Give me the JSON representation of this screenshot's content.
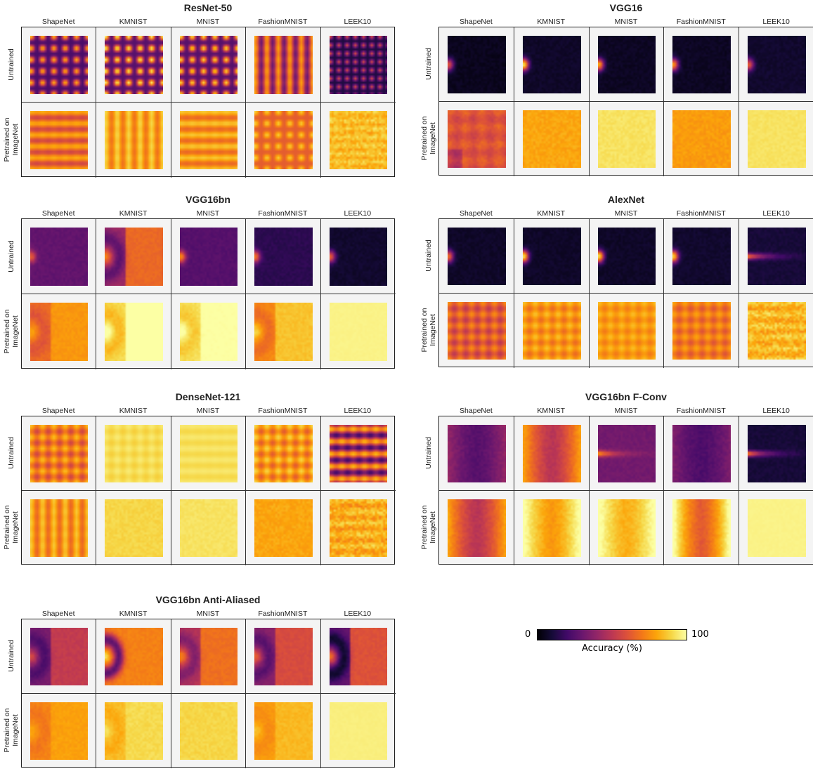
{
  "chart_data": {
    "type": "heatmap",
    "colormap": "inferno",
    "columns": [
      "ShapeNet",
      "KMNIST",
      "MNIST",
      "FashionMNIST",
      "LEEK10"
    ],
    "rows": [
      "Untrained",
      "Pretrained on ImageNet"
    ],
    "panels": [
      {
        "title": "ResNet-50",
        "cells": [
          [
            {
              "pattern": "dots",
              "base": 0.22,
              "amp": 0.6,
              "period": 5.5
            },
            {
              "pattern": "dots",
              "base": 0.25,
              "amp": 0.7,
              "period": 5.5
            },
            {
              "pattern": "dots",
              "base": 0.25,
              "amp": 0.65,
              "period": 5.5
            },
            {
              "pattern": "vstripes",
              "base": 0.3,
              "amp": 0.55,
              "period": 5.5
            },
            {
              "pattern": "dots",
              "base": 0.12,
              "amp": 0.45,
              "period": 4
            }
          ],
          [
            {
              "pattern": "hstripes",
              "base": 0.55,
              "amp": 0.3,
              "period": 5.5
            },
            {
              "pattern": "vstripes",
              "base": 0.68,
              "amp": 0.25,
              "period": 5.5
            },
            {
              "pattern": "hstripes",
              "base": 0.65,
              "amp": 0.25,
              "period": 5.5
            },
            {
              "pattern": "dots",
              "base": 0.63,
              "amp": 0.25,
              "period": 5.5
            },
            {
              "pattern": "noisy",
              "base": 0.86,
              "amp": 0.12,
              "period": 4
            }
          ]
        ]
      },
      {
        "title": "VGG16",
        "cells": [
          [
            {
              "pattern": "blob",
              "base": 0.05,
              "amp": 0.55,
              "period": 8
            },
            {
              "pattern": "blob",
              "base": 0.07,
              "amp": 0.85,
              "period": 8
            },
            {
              "pattern": "blob",
              "base": 0.06,
              "amp": 0.75,
              "period": 8
            },
            {
              "pattern": "blob",
              "base": 0.06,
              "amp": 0.7,
              "period": 8
            },
            {
              "pattern": "blob",
              "base": 0.08,
              "amp": 0.55,
              "period": 8
            }
          ],
          [
            {
              "pattern": "corner",
              "base": 0.6,
              "amp": 0.2,
              "period": 8
            },
            {
              "pattern": "flat",
              "base": 0.8,
              "amp": 0.06,
              "period": 8
            },
            {
              "pattern": "flat",
              "base": 0.93,
              "amp": 0.04,
              "period": 8
            },
            {
              "pattern": "flat",
              "base": 0.78,
              "amp": 0.06,
              "period": 8
            },
            {
              "pattern": "flat",
              "base": 0.93,
              "amp": 0.03,
              "period": 8
            }
          ]
        ]
      },
      {
        "title": "VGG16bn",
        "cells": [
          [
            {
              "pattern": "blob",
              "base": 0.28,
              "amp": 0.35,
              "period": 8
            },
            {
              "pattern": "halo",
              "base": 0.3,
              "amp": 0.6,
              "period": 8
            },
            {
              "pattern": "blob",
              "base": 0.25,
              "amp": 0.5,
              "period": 8
            },
            {
              "pattern": "blob",
              "base": 0.15,
              "amp": 0.55,
              "period": 8
            },
            {
              "pattern": "blob",
              "base": 0.08,
              "amp": 0.55,
              "period": 8
            }
          ],
          [
            {
              "pattern": "halo",
              "base": 0.62,
              "amp": 0.25,
              "period": 8
            },
            {
              "pattern": "halo",
              "base": 0.85,
              "amp": 0.3,
              "period": 8
            },
            {
              "pattern": "halo",
              "base": 0.88,
              "amp": 0.22,
              "period": 8
            },
            {
              "pattern": "halo",
              "base": 0.68,
              "amp": 0.3,
              "period": 8
            },
            {
              "pattern": "flat",
              "base": 0.97,
              "amp": 0.01,
              "period": 8
            }
          ]
        ]
      },
      {
        "title": "AlexNet",
        "cells": [
          [
            {
              "pattern": "blob",
              "base": 0.07,
              "amp": 0.6,
              "period": 8
            },
            {
              "pattern": "blob",
              "base": 0.07,
              "amp": 0.85,
              "period": 8
            },
            {
              "pattern": "blob",
              "base": 0.07,
              "amp": 0.85,
              "period": 8
            },
            {
              "pattern": "blob",
              "base": 0.08,
              "amp": 0.8,
              "period": 8
            },
            {
              "pattern": "streak",
              "base": 0.1,
              "amp": 0.6,
              "period": 8
            }
          ],
          [
            {
              "pattern": "grid",
              "base": 0.5,
              "amp": 0.25,
              "period": 5.5
            },
            {
              "pattern": "grid",
              "base": 0.66,
              "amp": 0.2,
              "period": 5.5
            },
            {
              "pattern": "grid",
              "base": 0.7,
              "amp": 0.15,
              "period": 5.5
            },
            {
              "pattern": "grid",
              "base": 0.6,
              "amp": 0.2,
              "period": 5.5
            },
            {
              "pattern": "noisy",
              "base": 0.85,
              "amp": 0.15,
              "period": 5.5
            }
          ]
        ]
      },
      {
        "title": "DenseNet-121",
        "cells": [
          [
            {
              "pattern": "grid",
              "base": 0.55,
              "amp": 0.3,
              "period": 5.5
            },
            {
              "pattern": "grid",
              "base": 0.88,
              "amp": 0.07,
              "period": 5.5
            },
            {
              "pattern": "hstripes",
              "base": 0.9,
              "amp": 0.05,
              "period": 5.5
            },
            {
              "pattern": "grid",
              "base": 0.62,
              "amp": 0.28,
              "period": 5.5
            },
            {
              "pattern": "hbands",
              "base": 0.45,
              "amp": 0.45,
              "period": 5.5
            }
          ],
          [
            {
              "pattern": "vstripes",
              "base": 0.65,
              "amp": 0.25,
              "period": 5.5
            },
            {
              "pattern": "flat",
              "base": 0.9,
              "amp": 0.04,
              "period": 5.5
            },
            {
              "pattern": "flat",
              "base": 0.93,
              "amp": 0.03,
              "period": 5.5
            },
            {
              "pattern": "flat",
              "base": 0.8,
              "amp": 0.06,
              "period": 5.5
            },
            {
              "pattern": "noisy",
              "base": 0.83,
              "amp": 0.15,
              "period": 5.5
            }
          ]
        ]
      },
      {
        "title": "VGG16bn F-Conv",
        "cells": [
          [
            {
              "pattern": "vband",
              "base": 0.28,
              "amp": 0.15,
              "period": 8
            },
            {
              "pattern": "vband",
              "base": 0.55,
              "amp": 0.3,
              "period": 8
            },
            {
              "pattern": "streak",
              "base": 0.32,
              "amp": 0.45,
              "period": 8
            },
            {
              "pattern": "vband",
              "base": 0.25,
              "amp": 0.12,
              "period": 8
            },
            {
              "pattern": "streak",
              "base": 0.1,
              "amp": 0.6,
              "period": 8
            }
          ],
          [
            {
              "pattern": "vband",
              "base": 0.55,
              "amp": 0.3,
              "period": 8
            },
            {
              "pattern": "vband",
              "base": 0.82,
              "amp": 0.25,
              "period": 8
            },
            {
              "pattern": "vband",
              "base": 0.86,
              "amp": 0.2,
              "period": 8
            },
            {
              "pattern": "vband",
              "base": 0.7,
              "amp": 0.4,
              "period": 8
            },
            {
              "pattern": "flat",
              "base": 0.97,
              "amp": 0.01,
              "period": 8
            }
          ]
        ]
      },
      {
        "title": "VGG16bn Anti-Aliased",
        "cells": [
          [
            {
              "pattern": "halo",
              "base": 0.25,
              "amp": 0.45,
              "period": 8
            },
            {
              "pattern": "ringdark",
              "base": 0.72,
              "amp": 0.45,
              "period": 8
            },
            {
              "pattern": "halo",
              "base": 0.38,
              "amp": 0.5,
              "period": 8
            },
            {
              "pattern": "halo",
              "base": 0.28,
              "amp": 0.5,
              "period": 8
            },
            {
              "pattern": "halo",
              "base": 0.12,
              "amp": 0.8,
              "period": 8
            }
          ],
          [
            {
              "pattern": "halo",
              "base": 0.7,
              "amp": 0.15,
              "period": 8
            },
            {
              "pattern": "halo",
              "base": 0.82,
              "amp": 0.15,
              "period": 8
            },
            {
              "pattern": "flat",
              "base": 0.9,
              "amp": 0.04,
              "period": 8
            },
            {
              "pattern": "halo",
              "base": 0.75,
              "amp": 0.15,
              "period": 8
            },
            {
              "pattern": "flat",
              "base": 0.96,
              "amp": 0.01,
              "period": 8
            }
          ]
        ]
      }
    ],
    "colorbar": {
      "min_label": "0",
      "max_label": "100",
      "label": "Accuracy (%)",
      "range": [
        0,
        100
      ]
    }
  }
}
